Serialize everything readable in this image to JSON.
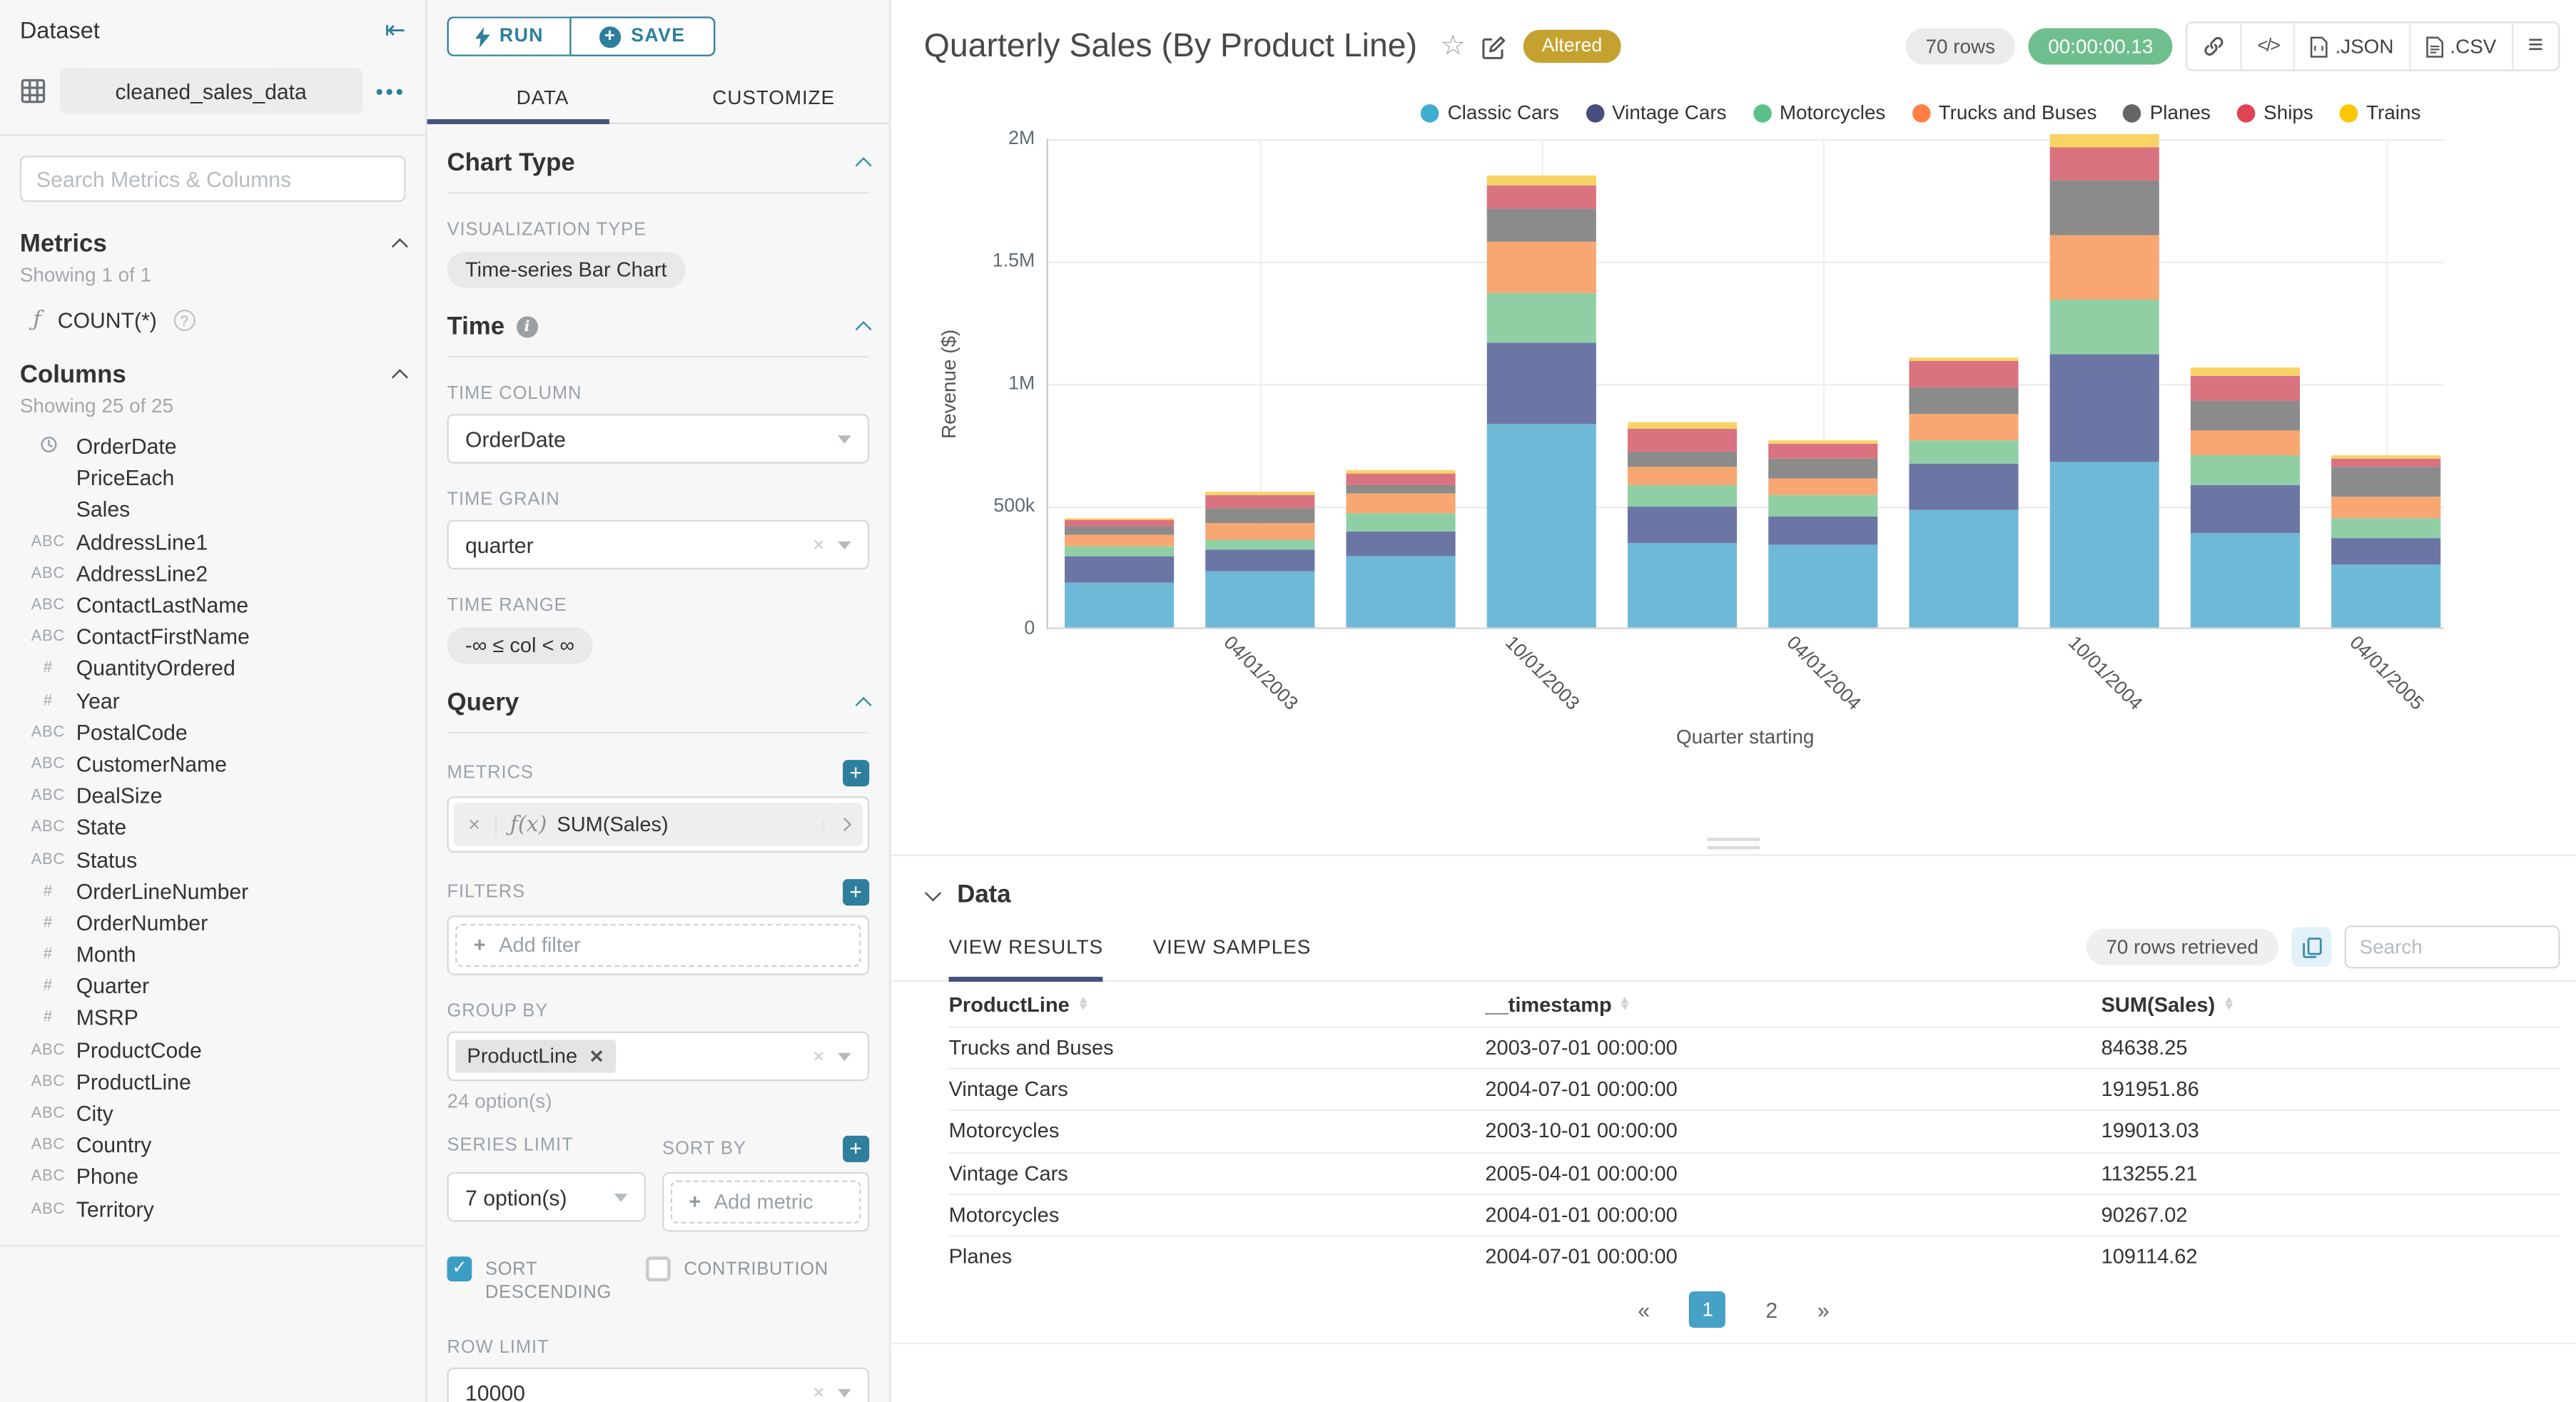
{
  "dataset_panel": {
    "title": "Dataset",
    "name": "cleaned_sales_data",
    "search_placeholder": "Search Metrics & Columns",
    "metrics": {
      "title": "Metrics",
      "showing": "Showing 1 of 1",
      "fn": "ƒ",
      "item_label": "COUNT(*)",
      "help_icon": "?"
    },
    "columns": {
      "title": "Columns",
      "showing": "Showing 25 of 25",
      "items": [
        {
          "type": "time",
          "label": "OrderDate"
        },
        {
          "type": "",
          "label": "PriceEach"
        },
        {
          "type": "",
          "label": "Sales"
        },
        {
          "type": "text",
          "label": "AddressLine1"
        },
        {
          "type": "text",
          "label": "AddressLine2"
        },
        {
          "type": "text",
          "label": "ContactLastName"
        },
        {
          "type": "text",
          "label": "ContactFirstName"
        },
        {
          "type": "num",
          "label": "QuantityOrdered"
        },
        {
          "type": "num",
          "label": "Year"
        },
        {
          "type": "text",
          "label": "PostalCode"
        },
        {
          "type": "text",
          "label": "CustomerName"
        },
        {
          "type": "text",
          "label": "DealSize"
        },
        {
          "type": "text",
          "label": "State"
        },
        {
          "type": "text",
          "label": "Status"
        },
        {
          "type": "num",
          "label": "OrderLineNumber"
        },
        {
          "type": "num",
          "label": "OrderNumber"
        },
        {
          "type": "num",
          "label": "Month"
        },
        {
          "type": "num",
          "label": "Quarter"
        },
        {
          "type": "num",
          "label": "MSRP"
        },
        {
          "type": "text",
          "label": "ProductCode"
        },
        {
          "type": "text",
          "label": "ProductLine"
        },
        {
          "type": "text",
          "label": "City"
        },
        {
          "type": "text",
          "label": "Country"
        },
        {
          "type": "text",
          "label": "Phone"
        },
        {
          "type": "text",
          "label": "Territory"
        }
      ],
      "type_icons": {
        "text": "ABC",
        "num": "#"
      }
    }
  },
  "controls": {
    "run_label": "RUN",
    "save_label": "SAVE",
    "tab_data": "DATA",
    "tab_customize": "CUSTOMIZE",
    "chart_type": {
      "title": "Chart Type",
      "viz_label": "VISUALIZATION TYPE",
      "viz_value": "Time-series Bar Chart"
    },
    "time": {
      "title": "Time",
      "col_label": "TIME COLUMN",
      "col_value": "OrderDate",
      "grain_label": "TIME GRAIN",
      "grain_value": "quarter",
      "range_label": "TIME RANGE",
      "range_value": "-∞ ≤ col < ∞"
    },
    "query": {
      "title": "Query",
      "metrics_label": "METRICS",
      "metric_fn": "ƒ(x)",
      "metric_value": "SUM(Sales)",
      "filters_label": "FILTERS",
      "add_filter": "Add filter",
      "group_by_label": "GROUP BY",
      "group_by_tag": "ProductLine",
      "group_by_hint": "24 option(s)",
      "series_limit_label": "SERIES LIMIT",
      "series_limit_value": "7 option(s)",
      "sort_by_label": "SORT BY",
      "add_metric": "Add metric",
      "sort_desc_label": "SORT DESCENDING",
      "contribution_label": "CONTRIBUTION",
      "row_limit_label": "ROW LIMIT",
      "row_limit_value": "10000"
    }
  },
  "header": {
    "title": "Quarterly Sales (By Product Line)",
    "altered_badge": "Altered",
    "rows_badge": "70 rows",
    "timer_badge": "00:00:00.13",
    "export_json": ".JSON",
    "export_csv": ".CSV"
  },
  "chart_data": {
    "type": "bar",
    "stacked": true,
    "title": "Quarterly Sales (By Product Line)",
    "xlabel": "Quarter starting",
    "ylabel": "Revenue ($)",
    "ylim": [
      0,
      2000000
    ],
    "grid": true,
    "legend_position": "top-right",
    "categories": [
      "2003-01-01",
      "2003-04-01",
      "2003-07-01",
      "2003-10-01",
      "2004-01-01",
      "2004-04-01",
      "2004-07-01",
      "2004-10-01",
      "2005-01-01",
      "2005-04-01"
    ],
    "xtick_indices": [
      1,
      3,
      5,
      7,
      9
    ],
    "xtick_labels": [
      "04/01/2003",
      "10/01/2003",
      "04/01/2004",
      "10/01/2004",
      "04/01/2005"
    ],
    "ytick_values": [
      0,
      500000,
      1000000,
      1500000,
      2000000
    ],
    "ytick_labels": [
      "0",
      "500k",
      "1M",
      "1.5M",
      "2M"
    ],
    "series": [
      {
        "name": "Classic Cars",
        "values": [
          185000,
          228000,
          292000,
          834000,
          345000,
          340000,
          480000,
          679000,
          385000,
          255000
        ]
      },
      {
        "name": "Vintage Cars",
        "values": [
          105000,
          87000,
          98000,
          329000,
          146000,
          112000,
          191951.86,
          437000,
          196000,
          113255.21
        ]
      },
      {
        "name": "Motorcycles",
        "values": [
          42000,
          46000,
          73000,
          199013.03,
          90267.02,
          86000,
          93000,
          219000,
          125000,
          80000
        ]
      },
      {
        "name": "Trucks and Buses",
        "values": [
          48000,
          64000,
          84638.25,
          215000,
          74000,
          70000,
          105000,
          266000,
          98000,
          88000
        ]
      },
      {
        "name": "Planes",
        "values": [
          33000,
          62000,
          32000,
          133000,
          62000,
          82000,
          109114.62,
          225000,
          123000,
          118000
        ]
      },
      {
        "name": "Ships",
        "values": [
          24000,
          54000,
          50000,
          95000,
          93000,
          58000,
          106000,
          134000,
          100000,
          38000
        ]
      },
      {
        "name": "Trains",
        "values": [
          8000,
          14000,
          15000,
          40000,
          25000,
          13000,
          17000,
          51000,
          34000,
          10000
        ]
      }
    ],
    "bar_colors": {
      "Classic Cars": "#6FB9D8",
      "Vintage Cars": "#6C76A5",
      "Motorcycles": "#90CFA4",
      "Trucks and Buses": "#F8A772",
      "Planes": "#8B8B8B",
      "Ships": "#DA7380",
      "Trains": "#F8D466"
    },
    "legend_colors": {
      "Classic Cars": "#3FADD0",
      "Vintage Cars": "#454E7C",
      "Motorcycles": "#5AC189",
      "Trucks and Buses": "#FF7F44",
      "Planes": "#666666",
      "Ships": "#E04355",
      "Trains": "#FCC700"
    }
  },
  "data_panel": {
    "title": "Data",
    "tab_results": "VIEW RESULTS",
    "tab_samples": "VIEW SAMPLES",
    "rows_retrieved": "70 rows retrieved",
    "search_placeholder": "Search",
    "table": {
      "columns": [
        "ProductLine",
        "__timestamp",
        "SUM(Sales)"
      ],
      "rows": [
        [
          "Trucks and Buses",
          "2003-07-01 00:00:00",
          "84638.25"
        ],
        [
          "Vintage Cars",
          "2004-07-01 00:00:00",
          "191951.86"
        ],
        [
          "Motorcycles",
          "2003-10-01 00:00:00",
          "199013.03"
        ],
        [
          "Vintage Cars",
          "2005-04-01 00:00:00",
          "113255.21"
        ],
        [
          "Motorcycles",
          "2004-01-01 00:00:00",
          "90267.02"
        ],
        [
          "Planes",
          "2004-07-01 00:00:00",
          "109114.62"
        ]
      ]
    },
    "pagination": {
      "prev": "«",
      "pages": [
        "1",
        "2"
      ],
      "active": "1",
      "next": "»"
    }
  }
}
